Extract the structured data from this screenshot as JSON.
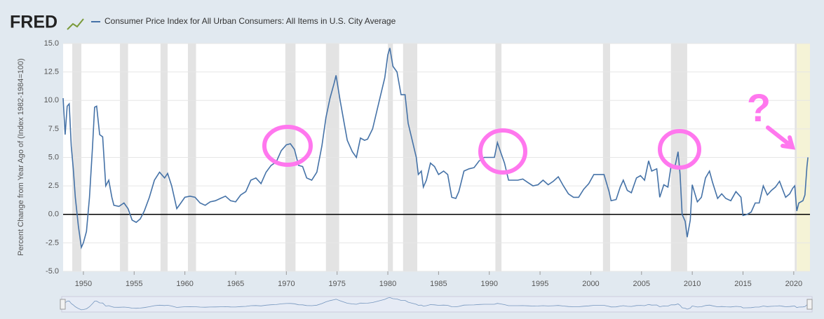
{
  "chart_data": {
    "type": "line",
    "logo": "FRED",
    "title": "Consumer Price Index for All Urban Consumers: All Items in U.S. City Average",
    "ylabel": "Percent Change from Year Ago of (Index 1982-1984=100)",
    "annotation": "?",
    "xlim": [
      1948,
      2021.6
    ],
    "ylim": [
      -5,
      15
    ],
    "xticks": [
      1950,
      1955,
      1960,
      1965,
      1970,
      1975,
      1980,
      1985,
      1990,
      1995,
      2000,
      2005,
      2010,
      2015,
      2020
    ],
    "yticks": [
      {
        "value": 15,
        "label": "15.0"
      },
      {
        "value": 12.5,
        "label": "12.5"
      },
      {
        "value": 10,
        "label": "10.0"
      },
      {
        "value": 7.5,
        "label": "7.5"
      },
      {
        "value": 5,
        "label": "5.0"
      },
      {
        "value": 2.5,
        "label": "2.5"
      },
      {
        "value": 0,
        "label": "0.0"
      },
      {
        "value": -2.5,
        "label": "-2.5"
      },
      {
        "value": -5,
        "label": "-5.0"
      }
    ],
    "grid": true,
    "recessions": [
      [
        1948.9,
        1949.8
      ],
      [
        1953.6,
        1954.4
      ],
      [
        1957.6,
        1958.3
      ],
      [
        1960.3,
        1961.1
      ],
      [
        1969.9,
        1970.9
      ],
      [
        1973.9,
        1975.2
      ],
      [
        1980.0,
        1980.5
      ],
      [
        1981.5,
        1982.9
      ],
      [
        1990.6,
        1991.2
      ],
      [
        2001.2,
        2001.9
      ],
      [
        2007.9,
        2009.5
      ],
      [
        2020.1,
        2020.3
      ]
    ],
    "highlight": [
      2020.3,
      2021.6
    ],
    "x": [
      1948.0,
      1948.2,
      1948.4,
      1948.6,
      1948.8,
      1949.0,
      1949.2,
      1949.5,
      1949.8,
      1950.0,
      1950.3,
      1950.6,
      1950.9,
      1951.1,
      1951.3,
      1951.6,
      1951.9,
      1952.2,
      1952.5,
      1952.8,
      1953.0,
      1953.5,
      1954.0,
      1954.4,
      1954.8,
      1955.2,
      1955.6,
      1956.0,
      1956.5,
      1957.0,
      1957.5,
      1958.0,
      1958.3,
      1958.7,
      1959.2,
      1959.6,
      1960.0,
      1960.5,
      1961.0,
      1961.5,
      1962.0,
      1962.5,
      1963.0,
      1963.5,
      1964.0,
      1964.5,
      1965.0,
      1965.5,
      1966.0,
      1966.5,
      1967.0,
      1967.5,
      1968.0,
      1968.5,
      1969.0,
      1969.5,
      1970.0,
      1970.4,
      1970.8,
      1971.2,
      1971.6,
      1972.0,
      1972.5,
      1973.0,
      1973.5,
      1973.9,
      1974.3,
      1974.7,
      1974.9,
      1975.3,
      1975.7,
      1976.0,
      1976.5,
      1976.9,
      1977.3,
      1977.7,
      1978.0,
      1978.5,
      1978.9,
      1979.3,
      1979.7,
      1980.0,
      1980.2,
      1980.5,
      1980.9,
      1981.3,
      1981.7,
      1982.0,
      1982.4,
      1982.8,
      1983.0,
      1983.3,
      1983.5,
      1983.8,
      1984.2,
      1984.6,
      1985.0,
      1985.5,
      1985.9,
      1986.3,
      1986.7,
      1987.0,
      1987.5,
      1988.0,
      1988.5,
      1989.0,
      1989.5,
      1990.0,
      1990.5,
      1990.8,
      1991.1,
      1991.5,
      1991.9,
      1992.3,
      1992.8,
      1993.3,
      1993.8,
      1994.3,
      1994.8,
      1995.3,
      1995.8,
      1996.3,
      1996.8,
      1997.3,
      1997.8,
      1998.3,
      1998.8,
      1999.3,
      1999.8,
      2000.3,
      2000.8,
      2001.3,
      2001.8,
      2002.0,
      2002.5,
      2002.9,
      2003.2,
      2003.6,
      2004.0,
      2004.5,
      2004.9,
      2005.3,
      2005.7,
      2006.0,
      2006.5,
      2006.8,
      2007.2,
      2007.6,
      2007.9,
      2008.3,
      2008.6,
      2008.8,
      2009.0,
      2009.3,
      2009.5,
      2009.8,
      2010.0,
      2010.5,
      2010.9,
      2011.3,
      2011.7,
      2012.0,
      2012.5,
      2012.9,
      2013.3,
      2013.8,
      2014.3,
      2014.8,
      2015.0,
      2015.4,
      2015.8,
      2016.2,
      2016.6,
      2017.0,
      2017.4,
      2017.8,
      2018.2,
      2018.6,
      2018.9,
      2019.2,
      2019.6,
      2019.9,
      2020.1,
      2020.3,
      2020.5,
      2020.9,
      2021.1,
      2021.3,
      2021.4
    ],
    "series": [
      {
        "name": "Consumer Price Index for All Urban Consumers: All Items in U.S. City Average",
        "color": "#4572a7",
        "values": [
          10.2,
          7,
          9.5,
          9.7,
          6,
          4,
          1.5,
          -1,
          -2.9,
          -2.5,
          -1.5,
          1.5,
          6,
          9.4,
          9.5,
          7,
          6.8,
          2.5,
          3,
          1.5,
          0.8,
          0.7,
          1,
          0.5,
          -0.5,
          -0.7,
          -0.4,
          0.3,
          1.5,
          3,
          3.7,
          3.2,
          3.6,
          2.5,
          0.5,
          1,
          1.5,
          1.6,
          1.5,
          1.0,
          0.8,
          1.1,
          1.2,
          1.4,
          1.6,
          1.2,
          1.1,
          1.7,
          2.0,
          3.0,
          3.2,
          2.7,
          3.7,
          4.3,
          4.6,
          5.6,
          6.1,
          6.2,
          5.7,
          4.3,
          4.2,
          3.2,
          3,
          3.7,
          6,
          8.5,
          10.2,
          11.5,
          12.2,
          10,
          8,
          6.5,
          5.5,
          5,
          6.7,
          6.5,
          6.6,
          7.5,
          9,
          10.5,
          12,
          14,
          14.6,
          13,
          12.5,
          10.5,
          10.5,
          8,
          6.5,
          5,
          3.5,
          3.8,
          2.4,
          3,
          4.5,
          4.2,
          3.5,
          3.8,
          3.5,
          1.5,
          1.4,
          2,
          3.8,
          4,
          4.1,
          4.7,
          5,
          5,
          5,
          6.3,
          5.5,
          4.5,
          3,
          3,
          3,
          3.1,
          2.8,
          2.5,
          2.6,
          3,
          2.6,
          2.9,
          3.3,
          2.5,
          1.8,
          1.5,
          1.5,
          2.2,
          2.7,
          3.5,
          3.5,
          3.5,
          2,
          1.2,
          1.3,
          2.4,
          3,
          2.1,
          1.9,
          3.2,
          3.4,
          3,
          4.7,
          3.8,
          4,
          1.5,
          2.6,
          2.4,
          4.2,
          4.2,
          5.5,
          3.5,
          0,
          -0.6,
          -2,
          -0.5,
          2.6,
          1.1,
          1.5,
          3.2,
          3.8,
          2.8,
          1.4,
          1.8,
          1.4,
          1.2,
          2,
          1.5,
          -0.1,
          0,
          0.2,
          1,
          1,
          2.5,
          1.7,
          2.1,
          2.4,
          2.9,
          2.2,
          1.5,
          1.8,
          2.3,
          2.5,
          0.3,
          1,
          1.2,
          1.7,
          4.2,
          5.0
        ]
      }
    ]
  }
}
